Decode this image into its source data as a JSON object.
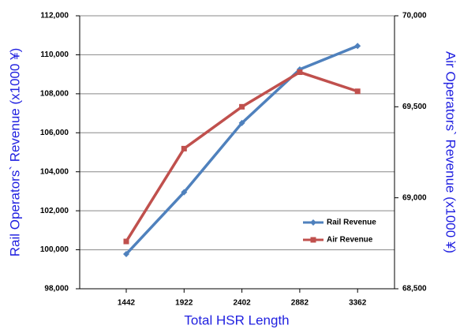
{
  "chart_data": {
    "type": "line",
    "xlabel": "Total HSR Length",
    "ylabel": "Rail Operators` Revenue (x1000 ¥)",
    "y2label": "Air Operators` Revenue (x1000 ¥)",
    "categories": [
      "1442",
      "1922",
      "2402",
      "2882",
      "3362"
    ],
    "series": [
      {
        "name": "Rail Revenue",
        "color": "#4f81bd",
        "values": [
          99780,
          102950,
          106500,
          109250,
          110450
        ]
      },
      {
        "name": "Air Revenue",
        "color": "#c0504d",
        "axis": "y2",
        "values": [
          68760,
          69270,
          69500,
          69690,
          69585
        ]
      }
    ],
    "ylim": [
      98000,
      112000
    ],
    "yticks": [
      {
        "value": 98000,
        "label": "98,000"
      },
      {
        "value": 100000,
        "label": "100,000"
      },
      {
        "value": 102000,
        "label": "102,000"
      },
      {
        "value": 104000,
        "label": "104,000"
      },
      {
        "value": 106000,
        "label": "106,000"
      },
      {
        "value": 108000,
        "label": "108,000"
      },
      {
        "value": 110000,
        "label": "110,000"
      },
      {
        "value": 112000,
        "label": "112,000"
      }
    ],
    "y2lim": [
      68500,
      70000
    ],
    "y2ticks": [
      {
        "value": 68500,
        "label": "68,500"
      },
      {
        "value": 69000,
        "label": "69,000"
      },
      {
        "value": 69500,
        "label": "69,500"
      },
      {
        "value": 70000,
        "label": "70,000"
      }
    ],
    "grid": true,
    "legend": "lower right"
  }
}
